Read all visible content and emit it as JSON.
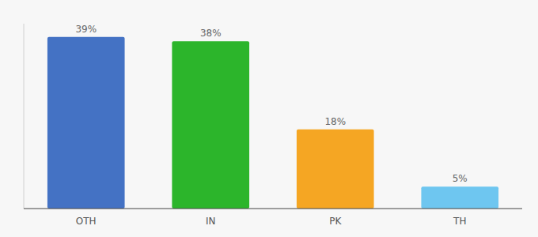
{
  "chart_data": {
    "type": "bar",
    "categories": [
      "OTH",
      "IN",
      "PK",
      "TH"
    ],
    "values": [
      39,
      38,
      18,
      5
    ],
    "value_labels": [
      "39%",
      "38%",
      "18%",
      "5%"
    ],
    "colors": [
      "#4472c4",
      "#2cb52b",
      "#f5a623",
      "#6ec6f0"
    ],
    "ylim": [
      0,
      42
    ],
    "data_labels": true,
    "tick_labels": "x",
    "grid": false
  }
}
